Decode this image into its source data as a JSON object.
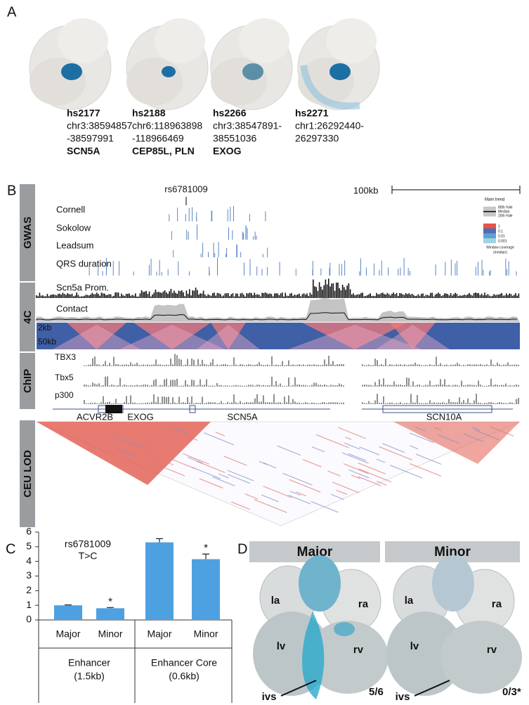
{
  "panel_a": {
    "label": "A",
    "items": [
      {
        "name": "hs2177",
        "lines": [
          "chr3:38594857",
          "-38597991"
        ],
        "gene": "SCN5A"
      },
      {
        "name": "hs2188",
        "lines": [
          "chr6:118963898",
          "-118966469"
        ],
        "gene": "CEP85L, PLN"
      },
      {
        "name": "hs2266",
        "lines": [
          "chr3:38547891-",
          "38551036"
        ],
        "gene": "EXOG"
      },
      {
        "name": "hs2271",
        "lines": [
          "chr1:26292440-",
          "26297330"
        ]
      }
    ]
  },
  "panel_b": {
    "label": "B",
    "snp": "rs6781009",
    "scale": "100kb",
    "sections": [
      "GWAS",
      "4C",
      "ChIP",
      "CEU LOD"
    ],
    "gwas_tracks": [
      "Cornell",
      "Sokolow",
      "Leadsum",
      "QRS duration"
    ],
    "c4_tracks": [
      "Scn5a Prom.",
      "Contact"
    ],
    "window_labels": [
      "2kb",
      "50kb"
    ],
    "chip_tracks": [
      "TBX3",
      "Tbx5",
      "p300"
    ],
    "genes": [
      "ACVR2B",
      "EXOG",
      "SCN5A",
      "SCN10A"
    ],
    "legend": {
      "trend_title": "Main trend",
      "trend_items": [
        "80th %ile",
        "Median",
        "20th %ile"
      ],
      "scale": [
        "1",
        "0.1",
        "0.01",
        "0.001"
      ],
      "coverage": [
        "Window coverage",
        "(median)"
      ]
    }
  },
  "chart_data": {
    "type": "bar",
    "label": "C",
    "annotation": [
      "rs6781009",
      "T>C"
    ],
    "categories": [
      "Major",
      "Minor",
      "Major",
      "Minor"
    ],
    "values": [
      1.0,
      0.8,
      5.3,
      4.15
    ],
    "errors": [
      0.03,
      0.05,
      0.25,
      0.35
    ],
    "significance": [
      null,
      "*",
      null,
      "*"
    ],
    "groups": [
      {
        "name": "Enhancer",
        "detail": "(1.5kb)"
      },
      {
        "name": "Enhancer Core",
        "detail": "(0.6kb)"
      }
    ],
    "color": "#4ea1e1",
    "ylim": [
      0,
      6
    ],
    "yticks": [
      0,
      1,
      2,
      3,
      4,
      5,
      6
    ]
  },
  "panel_d": {
    "label": "D",
    "headers": [
      "Major",
      "Minor"
    ],
    "chambers": [
      "la",
      "ra",
      "lv",
      "rv",
      "ivs"
    ],
    "counts": [
      "5/6",
      "0/3*"
    ]
  }
}
